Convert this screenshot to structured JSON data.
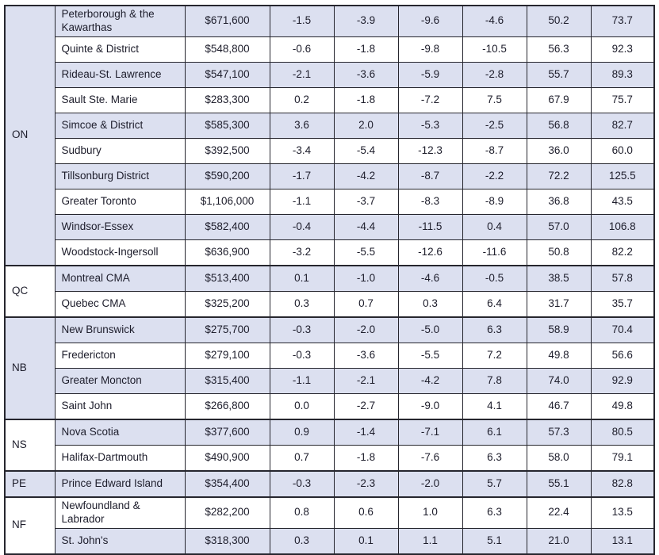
{
  "colors": {
    "row_shaded": "#dce0f0",
    "row_plain": "#ffffff",
    "border": "#26262e",
    "text": "#1d1d2b"
  },
  "table": {
    "groups": [
      {
        "province": "ON",
        "rows": [
          {
            "region": "Peterborough & the Kawarthas",
            "price": "$671,600",
            "values": [
              "-1.5",
              "-3.9",
              "-9.6",
              "-4.6",
              "50.2",
              "73.7"
            ]
          },
          {
            "region": "Quinte & District",
            "price": "$548,800",
            "values": [
              "-0.6",
              "-1.8",
              "-9.8",
              "-10.5",
              "56.3",
              "92.3"
            ]
          },
          {
            "region": "Rideau-St. Lawrence",
            "price": "$547,100",
            "values": [
              "-2.1",
              "-3.6",
              "-5.9",
              "-2.8",
              "55.7",
              "89.3"
            ]
          },
          {
            "region": "Sault Ste. Marie",
            "price": "$283,300",
            "values": [
              "0.2",
              "-1.8",
              "-7.2",
              "7.5",
              "67.9",
              "75.7"
            ]
          },
          {
            "region": "Simcoe & District",
            "price": "$585,300",
            "values": [
              "3.6",
              "2.0",
              "-5.3",
              "-2.5",
              "56.8",
              "82.7"
            ]
          },
          {
            "region": "Sudbury",
            "price": "$392,500",
            "values": [
              "-3.4",
              "-5.4",
              "-12.3",
              "-8.7",
              "36.0",
              "60.0"
            ]
          },
          {
            "region": "Tillsonburg District",
            "price": "$590,200",
            "values": [
              "-1.7",
              "-4.2",
              "-8.7",
              "-2.2",
              "72.2",
              "125.5"
            ]
          },
          {
            "region": "Greater Toronto",
            "price": "$1,106,000",
            "values": [
              "-1.1",
              "-3.7",
              "-8.3",
              "-8.9",
              "36.8",
              "43.5"
            ]
          },
          {
            "region": "Windsor-Essex",
            "price": "$582,400",
            "values": [
              "-0.4",
              "-4.4",
              "-11.5",
              "0.4",
              "57.0",
              "106.8"
            ]
          },
          {
            "region": "Woodstock-Ingersoll",
            "price": "$636,900",
            "values": [
              "-3.2",
              "-5.5",
              "-12.6",
              "-11.6",
              "50.8",
              "82.2"
            ]
          }
        ]
      },
      {
        "province": "QC",
        "rows": [
          {
            "region": "Montreal CMA",
            "price": "$513,400",
            "values": [
              "0.1",
              "-1.0",
              "-4.6",
              "-0.5",
              "38.5",
              "57.8"
            ]
          },
          {
            "region": "Quebec CMA",
            "price": "$325,200",
            "values": [
              "0.3",
              "0.7",
              "0.3",
              "6.4",
              "31.7",
              "35.7"
            ]
          }
        ]
      },
      {
        "province": "NB",
        "rows": [
          {
            "region": "New Brunswick",
            "price": "$275,700",
            "values": [
              "-0.3",
              "-2.0",
              "-5.0",
              "6.3",
              "58.9",
              "70.4"
            ]
          },
          {
            "region": "Fredericton",
            "price": "$279,100",
            "values": [
              "-0.3",
              "-3.6",
              "-5.5",
              "7.2",
              "49.8",
              "56.6"
            ]
          },
          {
            "region": "Greater Moncton",
            "price": "$315,400",
            "values": [
              "-1.1",
              "-2.1",
              "-4.2",
              "7.8",
              "74.0",
              "92.9"
            ]
          },
          {
            "region": "Saint John",
            "price": "$266,800",
            "values": [
              "0.0",
              "-2.7",
              "-9.0",
              "4.1",
              "46.7",
              "49.8"
            ]
          }
        ]
      },
      {
        "province": "NS",
        "rows": [
          {
            "region": "Nova Scotia",
            "price": "$377,600",
            "values": [
              "0.9",
              "-1.4",
              "-7.1",
              "6.1",
              "57.3",
              "80.5"
            ]
          },
          {
            "region": "Halifax-Dartmouth",
            "price": "$490,900",
            "values": [
              "0.7",
              "-1.8",
              "-7.6",
              "6.3",
              "58.0",
              "79.1"
            ]
          }
        ]
      },
      {
        "province": "PE",
        "rows": [
          {
            "region": "Prince Edward Island",
            "price": "$354,400",
            "values": [
              "-0.3",
              "-2.3",
              "-2.0",
              "5.7",
              "55.1",
              "82.8"
            ]
          }
        ]
      },
      {
        "province": "NF",
        "rows": [
          {
            "region": "Newfoundland & Labrador",
            "price": "$282,200",
            "values": [
              "0.8",
              "0.6",
              "1.0",
              "6.3",
              "22.4",
              "13.5"
            ]
          },
          {
            "region": "St. John's",
            "price": "$318,300",
            "values": [
              "0.3",
              "0.1",
              "1.1",
              "5.1",
              "21.0",
              "13.1"
            ]
          }
        ]
      }
    ]
  }
}
